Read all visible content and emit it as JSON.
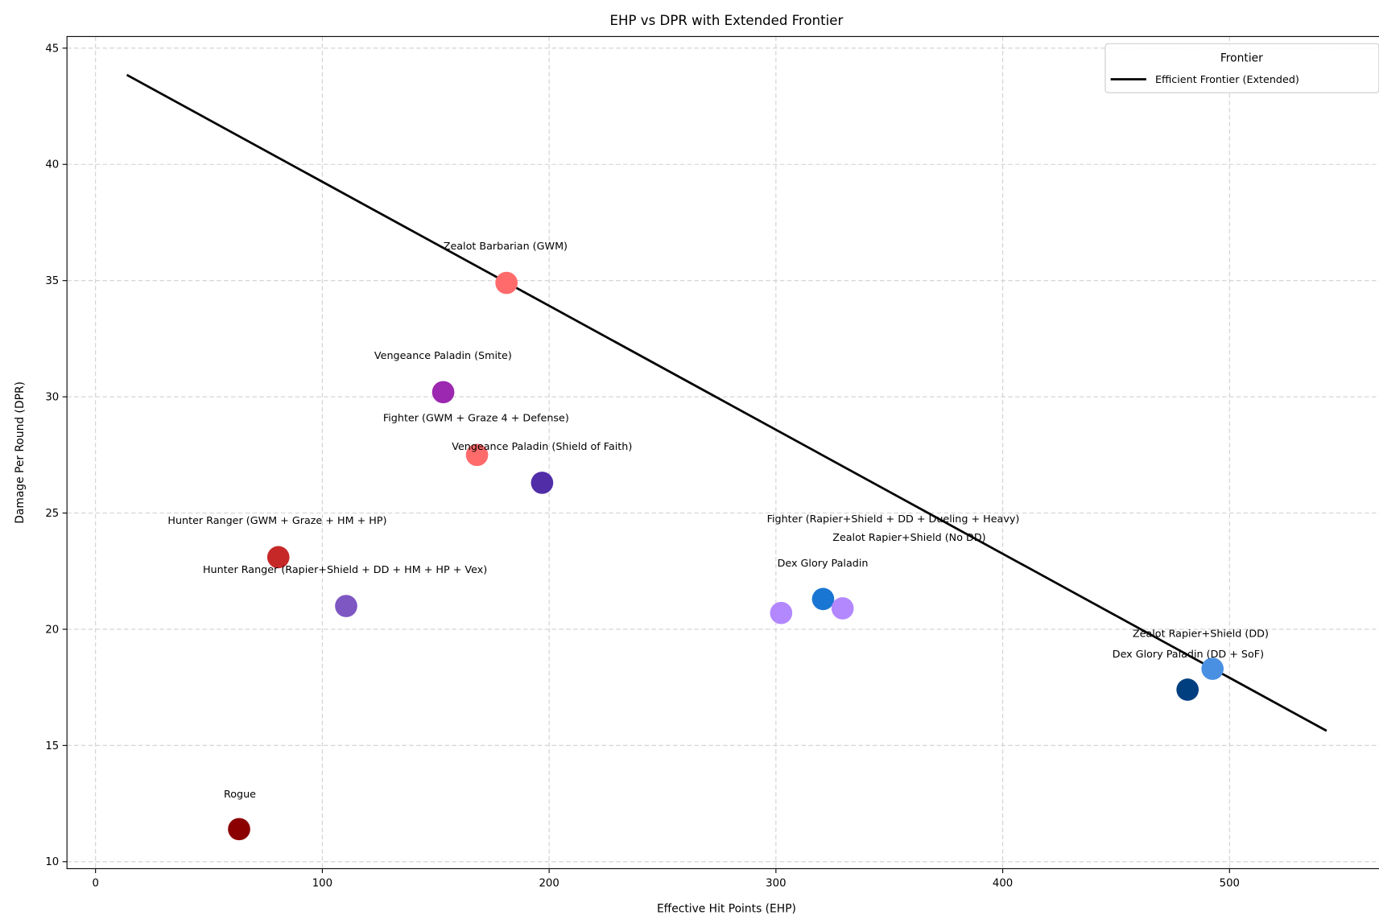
{
  "chart_data": {
    "type": "scatter",
    "title": "EHP vs DPR with Extended Frontier",
    "xlabel": "Effective Hit Points (EHP)",
    "ylabel": "Damage Per Round (DPR)",
    "xlim": [
      -12.6,
      569
    ],
    "ylim": [
      9.7,
      45.5
    ],
    "xticks": [
      0,
      100,
      200,
      300,
      400,
      500
    ],
    "yticks": [
      10,
      15,
      20,
      25,
      30,
      35,
      40,
      45
    ],
    "grid": true,
    "points": [
      {
        "label": "Rogue",
        "x": 63.3,
        "y": 11.4,
        "color": "#8b0000"
      },
      {
        "label": "Hunter Ranger (GWM + Graze + HM + HP)",
        "x": 80.6,
        "y": 23.1,
        "color": "#c62828"
      },
      {
        "label": "Hunter Ranger (Rapier+Shield + DD + HM + HP + Vex)",
        "x": 110.5,
        "y": 21.0,
        "color": "#7e57c2"
      },
      {
        "label": "Vengeance Paladin (Smite)",
        "x": 153.3,
        "y": 30.2,
        "color": "#9c27b0"
      },
      {
        "label": "Fighter (GWM + Graze 4 + Defense)",
        "x": 168.2,
        "y": 27.5,
        "color": "#ff6b6b"
      },
      {
        "label": "Zealot Barbarian (GWM)",
        "x": 181.2,
        "y": 34.9,
        "color": "#ff6b6b"
      },
      {
        "label": "Vengeance Paladin (Shield of Faith)",
        "x": 196.9,
        "y": 26.3,
        "color": "#512da8"
      },
      {
        "label": "Dex Glory Paladin",
        "x": 302.3,
        "y": 20.7,
        "color": "#b388ff"
      },
      {
        "label": "Fighter (Rapier+Shield + DD + Dueling + Heavy)",
        "x": 320.8,
        "y": 21.3,
        "color": "#1976d2"
      },
      {
        "label": "Zealot Rapier+Shield (No DD)",
        "x": 329.4,
        "y": 20.9,
        "color": "#b388ff"
      },
      {
        "label": "Dex Glory Paladin (DD + SoF)",
        "x": 481.5,
        "y": 17.4,
        "color": "#003f7f"
      },
      {
        "label": "Zealot Rapier+Shield (DD)",
        "x": 492.5,
        "y": 18.3,
        "color": "#4a90e2"
      }
    ],
    "series": [
      {
        "name": "Efficient Frontier (Extended)",
        "type": "line",
        "x": [
          13.8,
          542.8
        ],
        "y": [
          43.85,
          15.63
        ],
        "color": "#000000"
      }
    ],
    "legend": {
      "title": "Frontier",
      "placement": "top-right",
      "entries": [
        "Efficient Frontier (Extended)"
      ]
    }
  }
}
